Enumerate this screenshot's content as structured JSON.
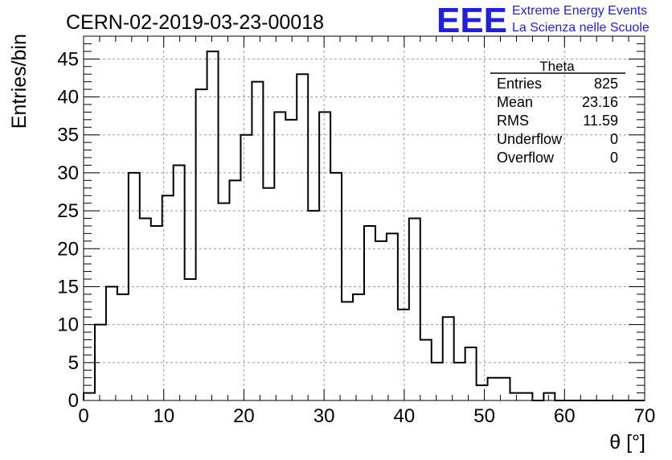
{
  "chart_data": {
    "type": "bar",
    "title": "CERN-02-2019-03-23-00018",
    "xlabel": "θ [°]",
    "ylabel": "Entries/bin",
    "xlim": [
      0,
      70
    ],
    "ylim": [
      0,
      48
    ],
    "grid": true,
    "x_ticks": [
      "0",
      "10",
      "20",
      "30",
      "40",
      "50",
      "60",
      "70"
    ],
    "y_ticks": [
      "0",
      "5",
      "10",
      "15",
      "20",
      "25",
      "30",
      "35",
      "40",
      "45"
    ],
    "bin_edges_start": 0,
    "bin_width": 1.4,
    "values": [
      1,
      10,
      15,
      14,
      30,
      24,
      23,
      27,
      31,
      16,
      41,
      46,
      26,
      29,
      35,
      42,
      28,
      38,
      37,
      43,
      25,
      38,
      30,
      13,
      14,
      23,
      21,
      22,
      12,
      24,
      8,
      5,
      11,
      5,
      7,
      2,
      3,
      3,
      1,
      1,
      0,
      1,
      0,
      0,
      0,
      0,
      0,
      0,
      0,
      0
    ],
    "stats_box": {
      "title": "Theta",
      "position": "top-right",
      "rows": [
        {
          "label": "Entries",
          "value": "825"
        },
        {
          "label": "Mean",
          "value": "23.16"
        },
        {
          "label": "RMS",
          "value": "11.59"
        },
        {
          "label": "Underflow",
          "value": "0"
        },
        {
          "label": "Overflow",
          "value": "0"
        }
      ]
    }
  },
  "logo": {
    "mark": "EEE",
    "line1": "Extreme Energy Events",
    "line2": "La Scienza nelle Scuole",
    "color": "#1f1fe0"
  }
}
